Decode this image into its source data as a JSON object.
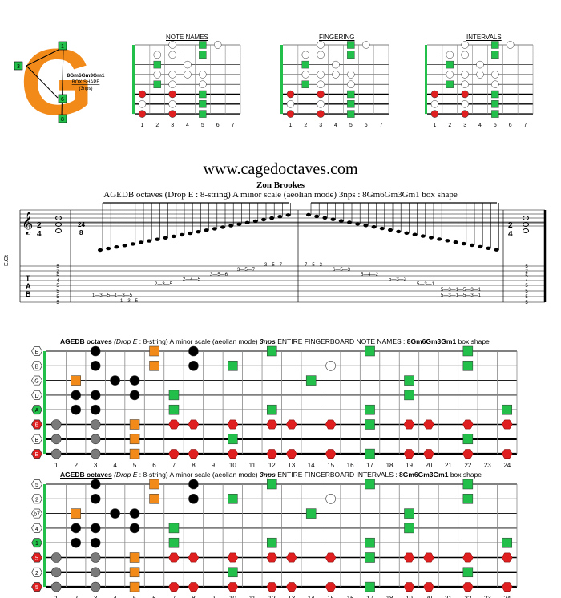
{
  "logo": {
    "letter": "G",
    "shape_name": "8Gm6Gm3Gm1",
    "caption1": "BOX SHAPE",
    "caption2": "(3nps)",
    "markers": [
      "1",
      "3",
      "6",
      "8"
    ]
  },
  "mini_diagrams": [
    {
      "title": "NOTE NAMES"
    },
    {
      "title": "FINGERING"
    },
    {
      "title": "INTERVALS"
    }
  ],
  "mini_fret_numbers": [
    "1",
    "2",
    "3",
    "4",
    "5",
    "6",
    "7"
  ],
  "website": "www.cagedoctaves.com",
  "author": "Zon Brookes",
  "subtitle": "AGEDB octaves (Drop E : 8-string) A minor scale (aeolian mode) 3nps : 8Gm6Gm3Gm1 box shape",
  "staff": {
    "time_signature": [
      "2",
      "4"
    ],
    "time_signature_2": [
      "24",
      "8"
    ],
    "tab_letters": [
      "T",
      "A",
      "B"
    ],
    "tuning_label": "E.Gt",
    "tab_row_a": "1—3—5—1—3—5",
    "tab_row_b": "1—3—5",
    "tab_line_numbers": [
      "5",
      "2",
      "5",
      "4",
      "5",
      "5",
      "5",
      "5"
    ],
    "ascending_tab": [
      "2—3—5",
      "2—4—5",
      "3—5—6",
      "3—5—7"
    ],
    "descending_tab": [
      "7—5—3",
      "6—5—3",
      "5—4—2",
      "5—3—2",
      "5—3—1",
      "5—3—1—5—3—1"
    ]
  },
  "fretboard_notes": {
    "title_bold": "AGEDB octaves",
    "title_italic": "(Drop E",
    "title_rest": ": 8-string) A minor scale (aeolian mode)",
    "title_bold2": "3nps",
    "title_rest2": "ENTIRE FINGERBOARD NOTE NAMES :",
    "title_shape": "8Gm6Gm3Gm1",
    "title_tail": "box shape",
    "open_labels": [
      "E",
      "B",
      "G",
      "D",
      "A",
      "E",
      "B",
      "E"
    ]
  },
  "fretboard_intervals": {
    "title_bold": "AGEDB octaves",
    "title_italic": "(Drop E",
    "title_rest": ": 8-string) A minor scale (aeolian mode)",
    "title_bold2": "3nps",
    "title_rest2": "ENTIRE FINGERBOARD INTERVALS :",
    "title_shape": "8Gm6Gm3Gm1",
    "title_tail": "box shape",
    "open_labels": [
      "5",
      "2",
      "b7",
      "4",
      "1",
      "5",
      "2",
      "5"
    ]
  },
  "fret_numbers": [
    "1",
    "2",
    "3",
    "4",
    "5",
    "6",
    "7",
    "8",
    "9",
    "10",
    "11",
    "12",
    "13",
    "14",
    "15",
    "16",
    "17",
    "18",
    "19",
    "20",
    "21",
    "22",
    "23",
    "24"
  ],
  "colors": {
    "accent_orange": "#f28a1a",
    "green": "#22c04a",
    "red": "#e02020",
    "black": "#000000",
    "gray": "#7a7a7a"
  }
}
